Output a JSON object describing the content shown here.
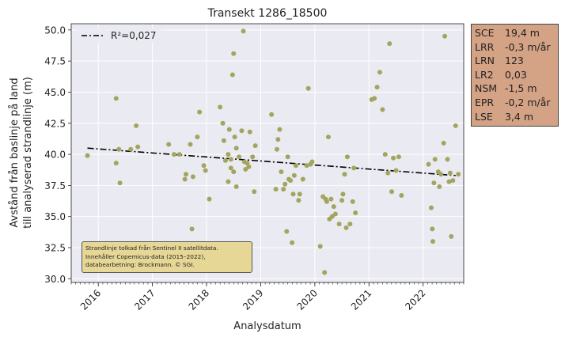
{
  "chart_data": {
    "type": "scatter",
    "title": "Transekt 1286_18500",
    "xlabel": "Analysdatum",
    "ylabel": [
      "Avstånd från baslinje på land",
      "till analyserad strandlinje (m)"
    ],
    "xlim": [
      2015.5,
      2022.75
    ],
    "ylim": [
      29.7,
      50.5
    ],
    "x_ticks": [
      2016,
      2017,
      2018,
      2019,
      2020,
      2021,
      2022
    ],
    "x_tick_labels": [
      "2016",
      "2017",
      "2018",
      "2019",
      "2020",
      "2021",
      "2022"
    ],
    "y_ticks": [
      30.0,
      32.5,
      35.0,
      37.5,
      40.0,
      42.5,
      45.0,
      47.5,
      50.0
    ],
    "y_tick_labels": [
      "30.0",
      "32.5",
      "35.0",
      "37.5",
      "40.0",
      "42.5",
      "45.0",
      "47.5",
      "50.0"
    ],
    "grid": true,
    "point_color": "#a3a55e",
    "trend_color": "#000000",
    "legend": {
      "position": "top-left",
      "label": "R²=0,027"
    },
    "trend": {
      "x": [
        2015.8,
        2022.6
      ],
      "y": [
        40.5,
        38.3
      ]
    },
    "points": [
      [
        2015.8,
        39.9
      ],
      [
        2016.33,
        44.5
      ],
      [
        2016.33,
        39.3
      ],
      [
        2016.38,
        40.4
      ],
      [
        2016.4,
        37.7
      ],
      [
        2016.6,
        40.4
      ],
      [
        2016.7,
        42.3
      ],
      [
        2016.73,
        40.6
      ],
      [
        2017.3,
        40.8
      ],
      [
        2017.4,
        40.0
      ],
      [
        2017.5,
        40.0
      ],
      [
        2017.6,
        38.0
      ],
      [
        2017.62,
        38.4
      ],
      [
        2017.7,
        40.8
      ],
      [
        2017.73,
        34.0
      ],
      [
        2017.75,
        38.2
      ],
      [
        2017.83,
        41.4
      ],
      [
        2017.87,
        43.4
      ],
      [
        2017.95,
        39.1
      ],
      [
        2017.98,
        38.7
      ],
      [
        2018.05,
        36.4
      ],
      [
        2018.25,
        43.8
      ],
      [
        2018.3,
        42.5
      ],
      [
        2018.32,
        41.1
      ],
      [
        2018.35,
        39.5
      ],
      [
        2018.4,
        40.0
      ],
      [
        2018.4,
        37.8
      ],
      [
        2018.42,
        42.0
      ],
      [
        2018.45,
        39.6
      ],
      [
        2018.45,
        38.9
      ],
      [
        2018.48,
        46.4
      ],
      [
        2018.5,
        48.1
      ],
      [
        2018.5,
        38.6
      ],
      [
        2018.52,
        41.4
      ],
      [
        2018.55,
        40.5
      ],
      [
        2018.55,
        37.4
      ],
      [
        2018.6,
        39.8
      ],
      [
        2018.65,
        41.9
      ],
      [
        2018.68,
        49.9
      ],
      [
        2018.7,
        39.4
      ],
      [
        2018.72,
        38.8
      ],
      [
        2018.75,
        39.3
      ],
      [
        2018.78,
        39.0
      ],
      [
        2018.8,
        41.8
      ],
      [
        2018.85,
        39.8
      ],
      [
        2018.88,
        37.0
      ],
      [
        2018.9,
        40.7
      ],
      [
        2019.2,
        43.2
      ],
      [
        2019.28,
        37.2
      ],
      [
        2019.3,
        40.4
      ],
      [
        2019.32,
        41.2
      ],
      [
        2019.35,
        42.0
      ],
      [
        2019.38,
        38.6
      ],
      [
        2019.42,
        37.2
      ],
      [
        2019.45,
        37.6
      ],
      [
        2019.48,
        33.8
      ],
      [
        2019.5,
        39.8
      ],
      [
        2019.52,
        38.0
      ],
      [
        2019.55,
        37.9
      ],
      [
        2019.58,
        32.9
      ],
      [
        2019.6,
        36.8
      ],
      [
        2019.62,
        38.3
      ],
      [
        2019.65,
        39.1
      ],
      [
        2019.7,
        36.3
      ],
      [
        2019.72,
        36.8
      ],
      [
        2019.78,
        38.0
      ],
      [
        2019.85,
        39.1
      ],
      [
        2019.88,
        45.3
      ],
      [
        2019.92,
        39.2
      ],
      [
        2019.95,
        39.4
      ],
      [
        2020.1,
        32.6
      ],
      [
        2020.15,
        36.6
      ],
      [
        2020.18,
        30.5
      ],
      [
        2020.2,
        36.4
      ],
      [
        2020.22,
        36.2
      ],
      [
        2020.25,
        41.4
      ],
      [
        2020.27,
        34.8
      ],
      [
        2020.3,
        36.4
      ],
      [
        2020.32,
        35.0
      ],
      [
        2020.35,
        35.8
      ],
      [
        2020.38,
        35.2
      ],
      [
        2020.45,
        34.4
      ],
      [
        2020.5,
        36.3
      ],
      [
        2020.52,
        36.8
      ],
      [
        2020.55,
        38.4
      ],
      [
        2020.58,
        34.1
      ],
      [
        2020.6,
        39.8
      ],
      [
        2020.65,
        34.4
      ],
      [
        2020.7,
        36.2
      ],
      [
        2020.72,
        38.9
      ],
      [
        2020.75,
        35.3
      ],
      [
        2021.05,
        44.4
      ],
      [
        2021.1,
        44.5
      ],
      [
        2021.15,
        45.4
      ],
      [
        2021.2,
        46.6
      ],
      [
        2021.25,
        43.6
      ],
      [
        2021.3,
        40.0
      ],
      [
        2021.35,
        38.5
      ],
      [
        2021.38,
        48.9
      ],
      [
        2021.42,
        37.0
      ],
      [
        2021.45,
        39.7
      ],
      [
        2021.5,
        38.7
      ],
      [
        2021.55,
        39.8
      ],
      [
        2021.6,
        36.7
      ],
      [
        2022.1,
        39.2
      ],
      [
        2022.15,
        35.7
      ],
      [
        2022.17,
        34.0
      ],
      [
        2022.18,
        33.0
      ],
      [
        2022.2,
        37.7
      ],
      [
        2022.22,
        39.6
      ],
      [
        2022.28,
        38.6
      ],
      [
        2022.3,
        37.4
      ],
      [
        2022.33,
        38.4
      ],
      [
        2022.38,
        40.9
      ],
      [
        2022.4,
        49.5
      ],
      [
        2022.45,
        39.6
      ],
      [
        2022.48,
        37.8
      ],
      [
        2022.5,
        38.5
      ],
      [
        2022.52,
        33.4
      ],
      [
        2022.55,
        37.9
      ],
      [
        2022.6,
        42.3
      ],
      [
        2022.65,
        38.4
      ]
    ]
  },
  "stats": [
    {
      "key": "SCE",
      "value": "19,4 m"
    },
    {
      "key": "LRR",
      "value": "-0,3 m/år"
    },
    {
      "key": "LRN",
      "value": "123"
    },
    {
      "key": "LR2",
      "value": "0,03"
    },
    {
      "key": "NSM",
      "value": "-1,5 m"
    },
    {
      "key": "EPR",
      "value": "-0,2 m/år"
    },
    {
      "key": "LSE",
      "value": "3,4 m"
    }
  ],
  "annotation": [
    "Strandlinje tolkad från Sentinel II satellitdata.",
    "Innehåller Copernicus-data (2015–2022),",
    "databearbetning: Brockmann. © SGI."
  ]
}
